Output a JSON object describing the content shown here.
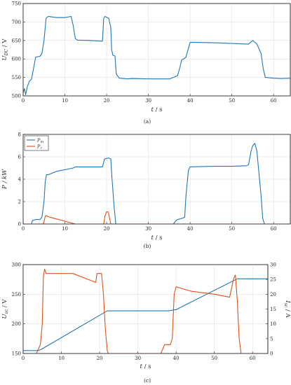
{
  "chart_data": [
    {
      "type": "line",
      "panel": "a",
      "caption": "(a)",
      "xlabel": "t / s",
      "ylabel": "U_DC / V",
      "xlim": [
        0,
        64
      ],
      "ylim": [
        500,
        750
      ],
      "xticks": [
        0,
        10,
        20,
        30,
        40,
        50,
        60
      ],
      "yticks": [
        500,
        550,
        600,
        650,
        700,
        750
      ],
      "grid": true,
      "legend": null,
      "series": [
        {
          "color": "#1f77b4",
          "x": [
            0,
            0.3,
            0.6,
            1,
            1.5,
            2,
            2.5,
            3,
            4,
            4.5,
            5,
            5.5,
            6,
            8,
            10,
            11.5,
            12,
            12.5,
            13,
            16,
            19,
            19.3,
            19.6,
            20.5,
            21,
            21.2,
            21.5,
            22,
            22.3,
            23,
            25,
            26,
            30,
            33,
            35,
            36,
            37,
            37.5,
            38,
            38.5,
            39,
            40,
            45,
            50,
            54,
            55,
            56,
            57,
            57.5,
            58,
            60,
            62,
            64
          ],
          "y": [
            508,
            520,
            503,
            525,
            540,
            545,
            575,
            605,
            607,
            615,
            650,
            710,
            715,
            712,
            712,
            715,
            690,
            655,
            651,
            650,
            648,
            710,
            715,
            710,
            685,
            625,
            610,
            608,
            560,
            548,
            546,
            547,
            546,
            546,
            546,
            550,
            555,
            575,
            598,
            600,
            605,
            645,
            644,
            642,
            640,
            650,
            640,
            615,
            575,
            550,
            548,
            547,
            548
          ]
        }
      ]
    },
    {
      "type": "line",
      "panel": "b",
      "caption": "(b)",
      "xlabel": "t / s",
      "ylabel": "P / kW",
      "xlim": [
        0,
        64
      ],
      "ylim": [
        0,
        8
      ],
      "xticks": [
        0,
        10,
        20,
        30,
        40,
        50,
        60
      ],
      "yticks": [
        0,
        2,
        4,
        6,
        8
      ],
      "grid": true,
      "legend": "top-left",
      "series": [
        {
          "name": "P_m",
          "color": "#1f77b4",
          "x": [
            0,
            2,
            2.2,
            3,
            4,
            4.5,
            5,
            5.3,
            5.6,
            6,
            8,
            12,
            12.5,
            19,
            19.5,
            20.5,
            21,
            21.3,
            21.8,
            22.2,
            22.5,
            36,
            36.6,
            37,
            38,
            38.7,
            39,
            39.6,
            40,
            45,
            50,
            53.5,
            54,
            54.6,
            55,
            55.5,
            56,
            56.5,
            57,
            57.4,
            57.8,
            64
          ],
          "y": [
            0,
            0,
            0.3,
            0.4,
            0.4,
            0.6,
            2.0,
            3.8,
            4.4,
            4.4,
            4.7,
            5.0,
            5.1,
            5.1,
            5.8,
            5.9,
            5.8,
            4.0,
            1.5,
            0,
            0,
            0,
            0.3,
            0.4,
            0.5,
            0.6,
            2.5,
            4.8,
            5.1,
            5.15,
            5.15,
            5.2,
            5.3,
            6.5,
            7.0,
            7.2,
            6.5,
            4.5,
            2.5,
            0.5,
            0,
            0
          ]
        },
        {
          "name": "P_r",
          "color": "#d95319",
          "x": [
            0,
            4.8,
            5,
            5.3,
            5.6,
            6,
            7,
            8,
            9,
            10,
            11,
            12,
            12.5,
            19.3,
            19.6,
            20,
            20.4,
            20.7,
            21,
            64
          ],
          "y": [
            0,
            0,
            0.2,
            0.7,
            0.75,
            0.65,
            0.55,
            0.45,
            0.35,
            0.25,
            0.15,
            0.05,
            0,
            0,
            0.7,
            1.1,
            1.05,
            0.5,
            0,
            0
          ]
        }
      ]
    },
    {
      "type": "line",
      "panel": "c",
      "caption": "(c)",
      "xlabel": "t / s",
      "ylabel": "U_sc / V",
      "y2label": "I_sc / A",
      "xlim": [
        0,
        64
      ],
      "ylim": [
        150,
        300
      ],
      "y2lim": [
        0,
        30
      ],
      "xticks": [
        0,
        10,
        20,
        30,
        40,
        50,
        60
      ],
      "yticks": [
        150,
        200,
        250,
        300
      ],
      "y2ticks": [
        0,
        5,
        10,
        15,
        20,
        25,
        30
      ],
      "grid": true,
      "legend": null,
      "series": [
        {
          "name": "U_sc",
          "axis": "left",
          "color": "#1f77b4",
          "x": [
            0,
            4,
            5,
            22,
            38,
            40,
            56,
            64
          ],
          "y": [
            155,
            155,
            158,
            222,
            222,
            224,
            276,
            276
          ]
        },
        {
          "name": "I_sc",
          "axis": "right",
          "color": "#d95319",
          "x": [
            0,
            3.5,
            3.8,
            4.5,
            5,
            5.3,
            5.6,
            6,
            12,
            13,
            19,
            19.3,
            20.5,
            21,
            21.5,
            22,
            22.3,
            36,
            36.5,
            37,
            38.5,
            39,
            39.5,
            40,
            44,
            50,
            54,
            55,
            55.5,
            56,
            56.5,
            57,
            64
          ],
          "y": [
            0,
            0,
            1,
            3,
            10,
            26,
            28.5,
            27,
            27,
            27,
            24,
            27,
            27,
            20,
            8,
            1,
            0,
            0,
            1.5,
            3,
            3,
            5,
            20,
            22.5,
            21,
            20,
            19,
            25,
            26.5,
            18,
            5,
            0,
            0
          ]
        }
      ]
    }
  ]
}
